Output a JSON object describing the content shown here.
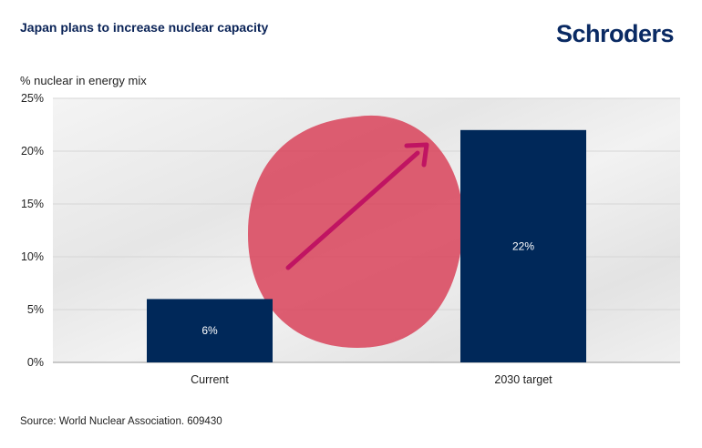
{
  "header": {
    "title": "Japan plans to increase nuclear capacity",
    "brand": "Schroders"
  },
  "footer": {
    "source": "Source: World Nuclear Association. 609430"
  },
  "colors": {
    "bar": "#002859",
    "flag_circle": "#d9485e",
    "arrow": "#c01462",
    "brand": "#0a2a63"
  },
  "chart_data": {
    "type": "bar",
    "ylabel": "% nuclear in energy mix",
    "xlabel": "",
    "categories": [
      "Current",
      "2030 target"
    ],
    "values": [
      6,
      22
    ],
    "value_labels": [
      "6%",
      "22%"
    ],
    "ylim": [
      0,
      25
    ],
    "yticks": [
      0,
      5,
      10,
      15,
      20,
      25
    ],
    "ytick_labels": [
      "0%",
      "5%",
      "10%",
      "15%",
      "20%",
      "25%"
    ],
    "grid": true,
    "legend": "none",
    "background": "Japanese flag with upward arrow"
  }
}
